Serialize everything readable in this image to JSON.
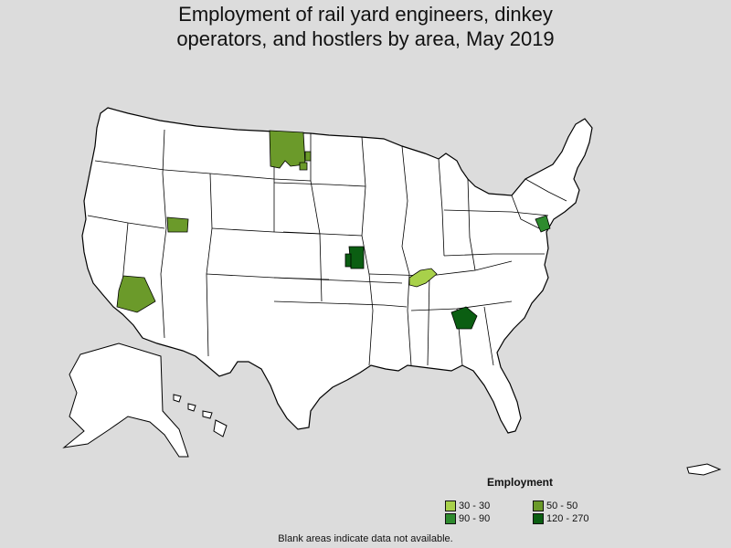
{
  "title_line1": "Employment of rail yard engineers, dinkey",
  "title_line2": "operators, and hostlers by area, May 2019",
  "legend": {
    "title": "Employment",
    "items": [
      {
        "label": "30 - 30",
        "color": "#a8d14a"
      },
      {
        "label": "50 - 50",
        "color": "#6b9a2a"
      },
      {
        "label": "90 - 90",
        "color": "#2e8b2e"
      },
      {
        "label": "120 - 270",
        "color": "#0b5e12"
      }
    ]
  },
  "footnote": "Blank areas indicate data not available.",
  "colors": {
    "background": "#dcdcdc",
    "no_data": "#ffffff",
    "border": "#000000"
  }
}
